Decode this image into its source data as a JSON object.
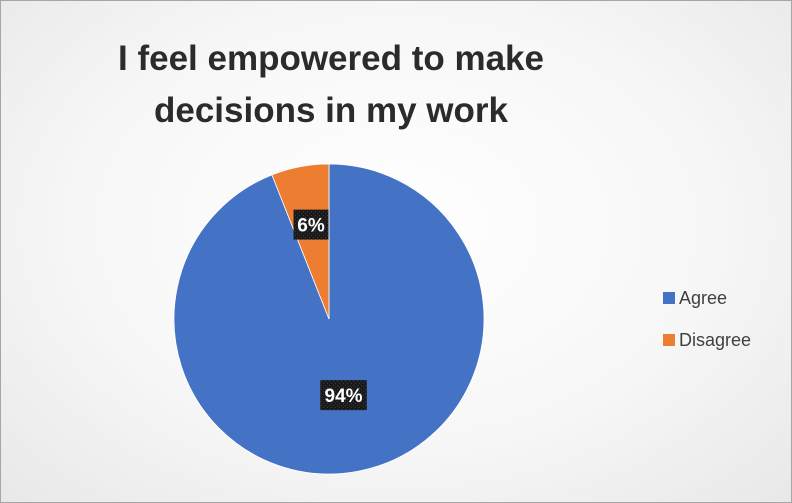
{
  "chart_data": {
    "type": "pie",
    "title": "I feel empowered to make decisions in my work",
    "title_lines": [
      "I feel empowered to make",
      "decisions in my work"
    ],
    "categories": [
      "Agree",
      "Disagree"
    ],
    "values": [
      94,
      6
    ],
    "data_labels": [
      "94%",
      "6%"
    ],
    "colors": [
      "#4472c4",
      "#ed7d31"
    ],
    "legend_position": "right",
    "start_angle": "12 o'clock",
    "direction": "counter-clockwise from Disagree / Agree fills remainder"
  }
}
